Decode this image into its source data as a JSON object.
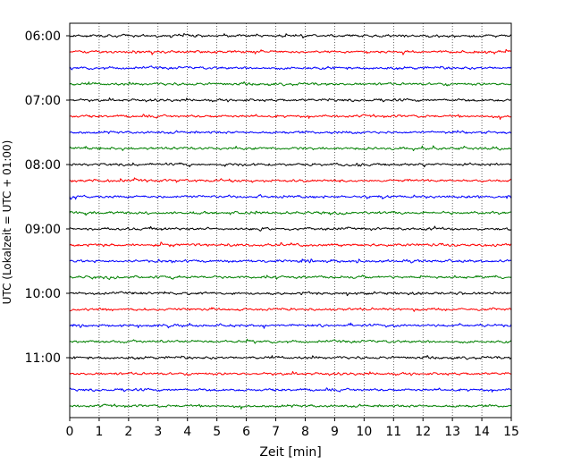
{
  "chart_data": {
    "type": "line",
    "subtype": "helicorder",
    "title": "",
    "xlabel": "Zeit  [min]",
    "ylabel": "UTC (Lokalzeit = UTC + 01:00)",
    "xlim": [
      0,
      15
    ],
    "x_ticks": [
      "0",
      "1",
      "2",
      "3",
      "4",
      "5",
      "6",
      "7",
      "8",
      "9",
      "10",
      "11",
      "12",
      "13",
      "14",
      "15"
    ],
    "y_ticks": [
      "06:00",
      "07:00",
      "08:00",
      "09:00",
      "10:00",
      "11:00"
    ],
    "grid": "vertical-dotted",
    "trace_colors": [
      "#000000",
      "#ff0000",
      "#0000ff",
      "#008000"
    ],
    "traces_per_hour": 4,
    "minutes_per_trace": 15,
    "start_time": "06:00",
    "trace_count": 24
  }
}
